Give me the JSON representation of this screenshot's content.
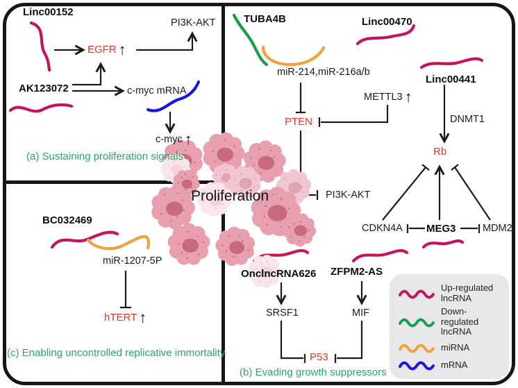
{
  "figure": {
    "center_label": "Proliferation",
    "illustration": "tumor-cells-illustration"
  },
  "glyphs": {
    "up_arrow": "↑"
  },
  "colors": {
    "up_lncrna": "#C5135D",
    "down_lncrna": "#189C4D",
    "mirna": "#F2A13B",
    "mrna": "#1813E6",
    "gene_red": "#E2352B",
    "caption_green": "#2EA563",
    "line_black": "#1b1b1b",
    "legend_bg": "#E8E8E8"
  },
  "panel_a": {
    "caption": "(a) Sustaining proliferation signals",
    "linc00152": "Linc00152",
    "ak123072": "AK123072",
    "egfr": "EGFR",
    "pi3k_akt": "PI3K-AKT",
    "cmyc_mrna": "c-myc mRNA",
    "cmyc": "c-myc"
  },
  "panel_b": {
    "caption": "(b) Evading growth suppressors",
    "tuba4b": "TUBA4B",
    "linc00470": "Linc00470",
    "mir_214_216": "miR-214,miR-216a/b",
    "mettl3": "METTL3",
    "pten": "PTEN",
    "linc00441": "Linc00441",
    "dnmt1": "DNMT1",
    "rb": "Rb",
    "pi3k_akt": "PI3K-AKT",
    "cdkn4a": "CDKN4A",
    "meg3": "MEG3",
    "mdm2": "MDM2",
    "onclncrna626": "OnclncRNA626",
    "zfpm2_as": "ZFPM2-AS",
    "srsf1": "SRSF1",
    "mif": "MIF",
    "p53": "P53"
  },
  "panel_c": {
    "caption": "(c) Enabling uncontrolled replicative immortality",
    "bc032469": "BC032469",
    "mir_1207_5p": "miR-1207-5P",
    "htert": "hTERT"
  },
  "legend": {
    "items": [
      {
        "label": "Up-regulated lncRNA",
        "type": "up-lncrna"
      },
      {
        "label": "Down-regulated lncRNA",
        "type": "down-lncrna"
      },
      {
        "label": "miRNA",
        "type": "mirna"
      },
      {
        "label": "mRNA",
        "type": "mrna"
      }
    ]
  }
}
